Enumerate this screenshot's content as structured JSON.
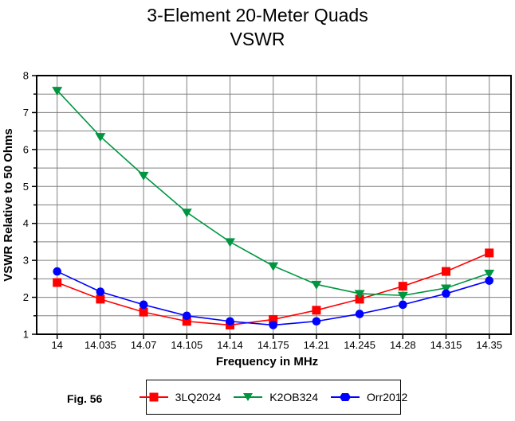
{
  "title": {
    "line1": "3-Element 20-Meter Quads",
    "line2": "VSWR"
  },
  "fig_label": "Fig. 56",
  "axes": {
    "y_label": "VSWR Relative to 50 Ohms",
    "x_label": "Frequency in MHz"
  },
  "colors": {
    "background": "#FFFFFF",
    "axis_frame": "#000000",
    "gridline": "#808080",
    "series_red": "#FF0000",
    "series_green": "#009640",
    "series_blue": "#0000FF"
  },
  "chart_data": {
    "type": "line",
    "title": "3-Element 20-Meter Quads VSWR",
    "xlabel": "Frequency in MHz",
    "ylabel": "VSWR Relative to 50 Ohms",
    "x": [
      14,
      14.035,
      14.07,
      14.105,
      14.14,
      14.175,
      14.21,
      14.245,
      14.28,
      14.315,
      14.35
    ],
    "x_tick_labels": [
      "14",
      "14.035",
      "14.07",
      "14.105",
      "14.14",
      "14.175",
      "14.21",
      "14.245",
      "14.28",
      "14.315",
      "14.35"
    ],
    "ylim": [
      1,
      8
    ],
    "y_major_ticks": [
      1,
      2,
      3,
      4,
      5,
      6,
      7,
      8
    ],
    "y_gridline_step": 0.5,
    "grid": true,
    "grid_color": "#808080",
    "legend_position": "bottom",
    "series": [
      {
        "name": "3LQ2024",
        "color": "#FF0000",
        "marker": "square",
        "values": [
          2.4,
          1.95,
          1.6,
          1.35,
          1.25,
          1.4,
          1.65,
          1.95,
          2.3,
          2.7,
          3.2
        ]
      },
      {
        "name": "K2OB324",
        "color": "#009640",
        "marker": "triangle-down",
        "values": [
          7.6,
          6.35,
          5.3,
          4.3,
          3.5,
          2.85,
          2.35,
          2.1,
          2.05,
          2.25,
          2.65
        ]
      },
      {
        "name": "Orr2012",
        "color": "#0000FF",
        "marker": "circle",
        "values": [
          2.7,
          2.15,
          1.8,
          1.5,
          1.35,
          1.25,
          1.35,
          1.55,
          1.8,
          2.1,
          2.45
        ]
      }
    ]
  }
}
